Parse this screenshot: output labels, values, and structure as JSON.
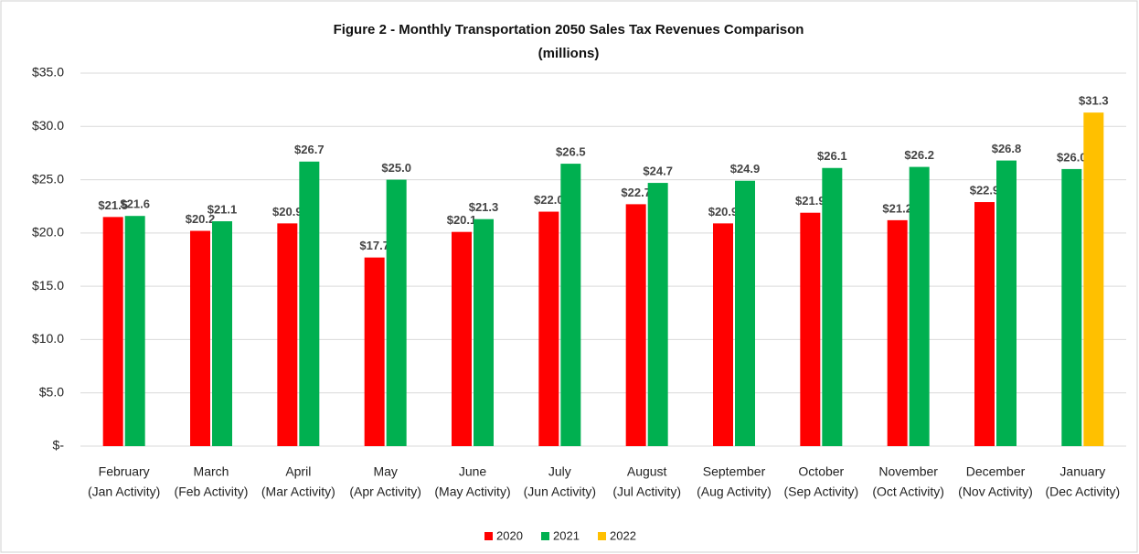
{
  "chart_data": {
    "type": "bar",
    "title": "Figure 2 - Monthly Transportation 2050 Sales Tax Revenues Comparison",
    "subtitle": "(millions)",
    "categories": [
      [
        "February",
        "(Jan Activity)"
      ],
      [
        "March",
        "(Feb Activity)"
      ],
      [
        "April",
        "(Mar Activity)"
      ],
      [
        "May",
        "(Apr Activity)"
      ],
      [
        "June",
        "(May Activity)"
      ],
      [
        "July",
        "(Jun Activity)"
      ],
      [
        "August",
        "(Jul Activity)"
      ],
      [
        "September",
        "(Aug Activity)"
      ],
      [
        "October",
        "(Sep Activity)"
      ],
      [
        "November",
        "(Oct Activity)"
      ],
      [
        "December",
        "(Nov Activity)"
      ],
      [
        "January",
        "(Dec Activity)"
      ]
    ],
    "series": [
      {
        "name": "2020",
        "color": "#ff0000",
        "values": [
          21.5,
          20.2,
          20.9,
          17.7,
          20.1,
          22.0,
          22.7,
          20.9,
          21.9,
          21.2,
          22.9,
          null
        ],
        "value_labels": [
          "$21.5",
          "$20.2",
          "$20.9",
          "$17.7",
          "$20.1",
          "$22.0",
          "$22.7",
          "$20.9",
          "$21.9",
          "$21.2",
          "$22.9",
          null
        ]
      },
      {
        "name": "2021",
        "color": "#00b050",
        "values": [
          21.6,
          21.1,
          26.7,
          25.0,
          21.3,
          26.5,
          24.7,
          24.9,
          26.1,
          26.2,
          26.8,
          26.0
        ],
        "value_labels": [
          "$21.6",
          "$21.1",
          "$26.7",
          "$25.0",
          "$21.3",
          "$26.5",
          "$24.7",
          "$24.9",
          "$26.1",
          "$26.2",
          "$26.8",
          "$26.0"
        ]
      },
      {
        "name": "2022",
        "color": "#ffc000",
        "values": [
          null,
          null,
          null,
          null,
          null,
          null,
          null,
          null,
          null,
          null,
          null,
          31.3
        ],
        "value_labels": [
          null,
          null,
          null,
          null,
          null,
          null,
          null,
          null,
          null,
          null,
          null,
          "$31.3"
        ]
      }
    ],
    "ylim": [
      0,
      35
    ],
    "yticks": [
      {
        "value": 0,
        "label": "$-"
      },
      {
        "value": 5,
        "label": "$5.0"
      },
      {
        "value": 10,
        "label": "$10.0"
      },
      {
        "value": 15,
        "label": "$15.0"
      },
      {
        "value": 20,
        "label": "$20.0"
      },
      {
        "value": 25,
        "label": "$25.0"
      },
      {
        "value": 30,
        "label": "$30.0"
      },
      {
        "value": 35,
        "label": "$35.0"
      }
    ],
    "grid": true,
    "legend": "bottom"
  }
}
